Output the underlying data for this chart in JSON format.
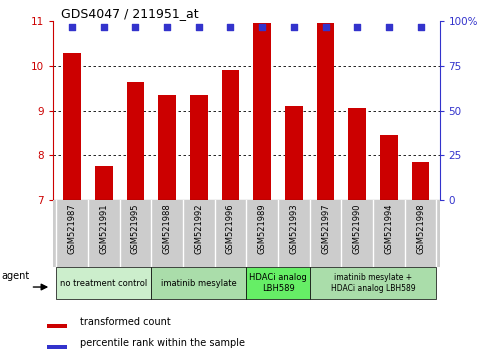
{
  "title": "GDS4047 / 211951_at",
  "samples": [
    "GSM521987",
    "GSM521991",
    "GSM521995",
    "GSM521988",
    "GSM521992",
    "GSM521996",
    "GSM521989",
    "GSM521993",
    "GSM521997",
    "GSM521990",
    "GSM521994",
    "GSM521998"
  ],
  "bar_values": [
    10.3,
    7.75,
    9.65,
    9.35,
    9.35,
    9.9,
    10.95,
    9.1,
    10.95,
    9.05,
    8.45,
    7.85
  ],
  "bar_color": "#cc0000",
  "percentile_color": "#3333cc",
  "ylim_left": [
    7,
    11
  ],
  "ylim_right": [
    0,
    100
  ],
  "yticks_left": [
    7,
    8,
    9,
    10,
    11
  ],
  "yticks_right": [
    0,
    25,
    50,
    75,
    100
  ],
  "group_colors": [
    "#cceecc",
    "#aaddaa",
    "#66ee66",
    "#aaddaa"
  ],
  "group_texts": [
    "no treatment control",
    "imatinib mesylate",
    "HDACi analog\nLBH589",
    "imatinib mesylate +\nHDACi analog LBH589"
  ],
  "group_ranges": [
    [
      0,
      3
    ],
    [
      3,
      6
    ],
    [
      6,
      8
    ],
    [
      8,
      12
    ]
  ],
  "legend_items": [
    {
      "label": "transformed count",
      "color": "#cc0000"
    },
    {
      "label": "percentile rank within the sample",
      "color": "#3333cc"
    }
  ],
  "right_axis_color": "#3333cc",
  "left_axis_color": "#cc0000",
  "sample_bg_color": "#cccccc",
  "bar_width": 0.55
}
